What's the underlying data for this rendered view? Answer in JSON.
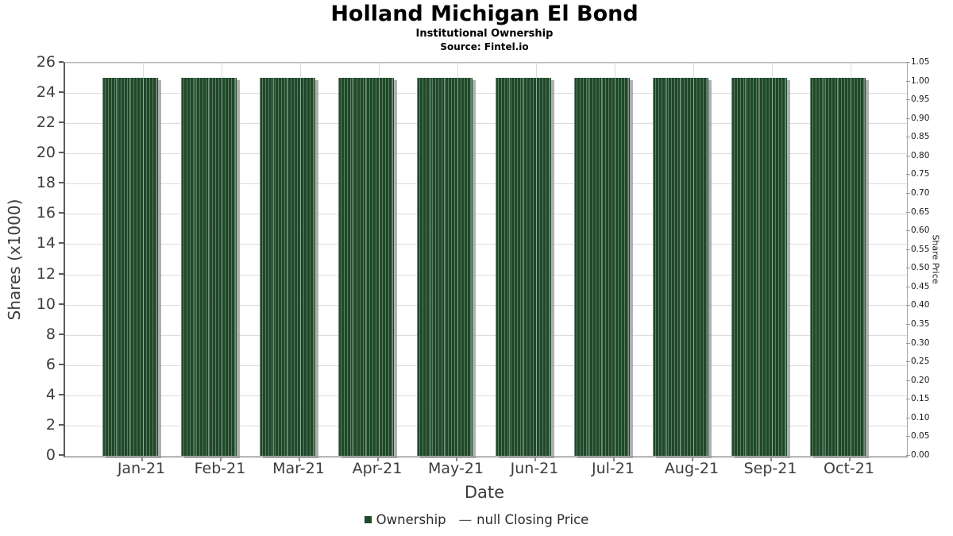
{
  "chart_data": {
    "type": "bar",
    "title": "Holland Michigan El Bond",
    "subtitle": "Institutional Ownership",
    "source": "Source: Fintel.io",
    "xlabel": "Date",
    "ylabel": "Shares (x1000)",
    "ylabel_right": "Share Price",
    "categories": [
      "Jan-21",
      "Feb-21",
      "Mar-21",
      "Apr-21",
      "May-21",
      "Jun-21",
      "Jul-21",
      "Aug-21",
      "Sep-21",
      "Oct-21"
    ],
    "series": [
      {
        "name": "Ownership",
        "values": [
          25,
          25,
          25,
          25,
          25,
          25,
          25,
          25,
          25,
          25
        ]
      },
      {
        "name": "null Closing Price",
        "values": []
      }
    ],
    "values": [
      25,
      25,
      25,
      25,
      25,
      25,
      25,
      25,
      25,
      25
    ],
    "ylim_left": [
      0,
      26
    ],
    "ylim_right": [
      0,
      1.05
    ],
    "yticks_left": [
      0,
      2,
      4,
      6,
      8,
      10,
      12,
      14,
      16,
      18,
      20,
      22,
      24,
      26
    ],
    "yticks_right": [
      "0.00",
      "0.05",
      "0.10",
      "0.15",
      "0.20",
      "0.25",
      "0.30",
      "0.35",
      "0.40",
      "0.45",
      "0.50",
      "0.55",
      "0.60",
      "0.65",
      "0.70",
      "0.75",
      "0.80",
      "0.85",
      "0.90",
      "0.95",
      "1.00",
      "1.05"
    ],
    "grid": true,
    "legend_position": "bottom"
  },
  "legend": {
    "items": [
      {
        "label": "Ownership",
        "marker": "square",
        "color": "#1d4928"
      },
      {
        "label": "null Closing Price",
        "marker": "—",
        "color": "#555555"
      }
    ]
  },
  "colors": {
    "bar": "#1d4928",
    "bar_stripe": "#607a66",
    "bar_shadow": "#a0a0a0",
    "grid": "#dcdcdc",
    "axis_text": "#3d3d3d"
  }
}
